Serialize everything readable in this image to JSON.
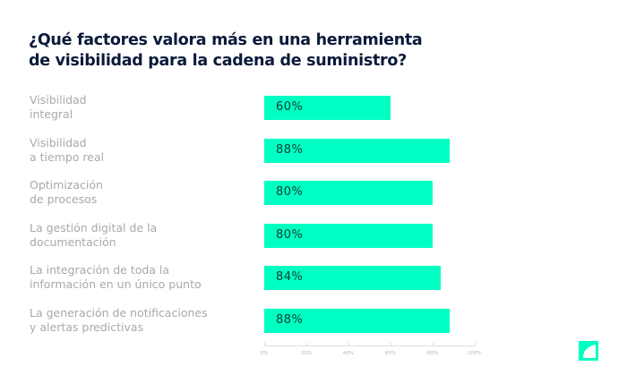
{
  "chart_data": {
    "type": "bar",
    "orientation": "horizontal",
    "title_lines": [
      "¿Qué factores valora más en una herramienta",
      "de visibilidad para la cadena de suministro?"
    ],
    "categories": [
      [
        "Visibilidad",
        "integral"
      ],
      [
        "Visibilidad",
        "a tiempo real"
      ],
      [
        "Optimización",
        "de procesos"
      ],
      [
        "La gestión digital de la",
        "documentación"
      ],
      [
        "La integración de toda la",
        "información en un único punto"
      ],
      [
        "La generación de notificaciones",
        "y alertas predictivas"
      ]
    ],
    "values": [
      60,
      88,
      80,
      80,
      84,
      88
    ],
    "data_labels": [
      "60%",
      "88%",
      "80%",
      "80%",
      "84%",
      "88%"
    ],
    "xlim": [
      0,
      100
    ],
    "x_ticks": [
      "0%",
      "20%",
      "40%",
      "60%",
      "80%",
      "100%"
    ],
    "grid": false,
    "bar_color": "#00ffc3"
  }
}
